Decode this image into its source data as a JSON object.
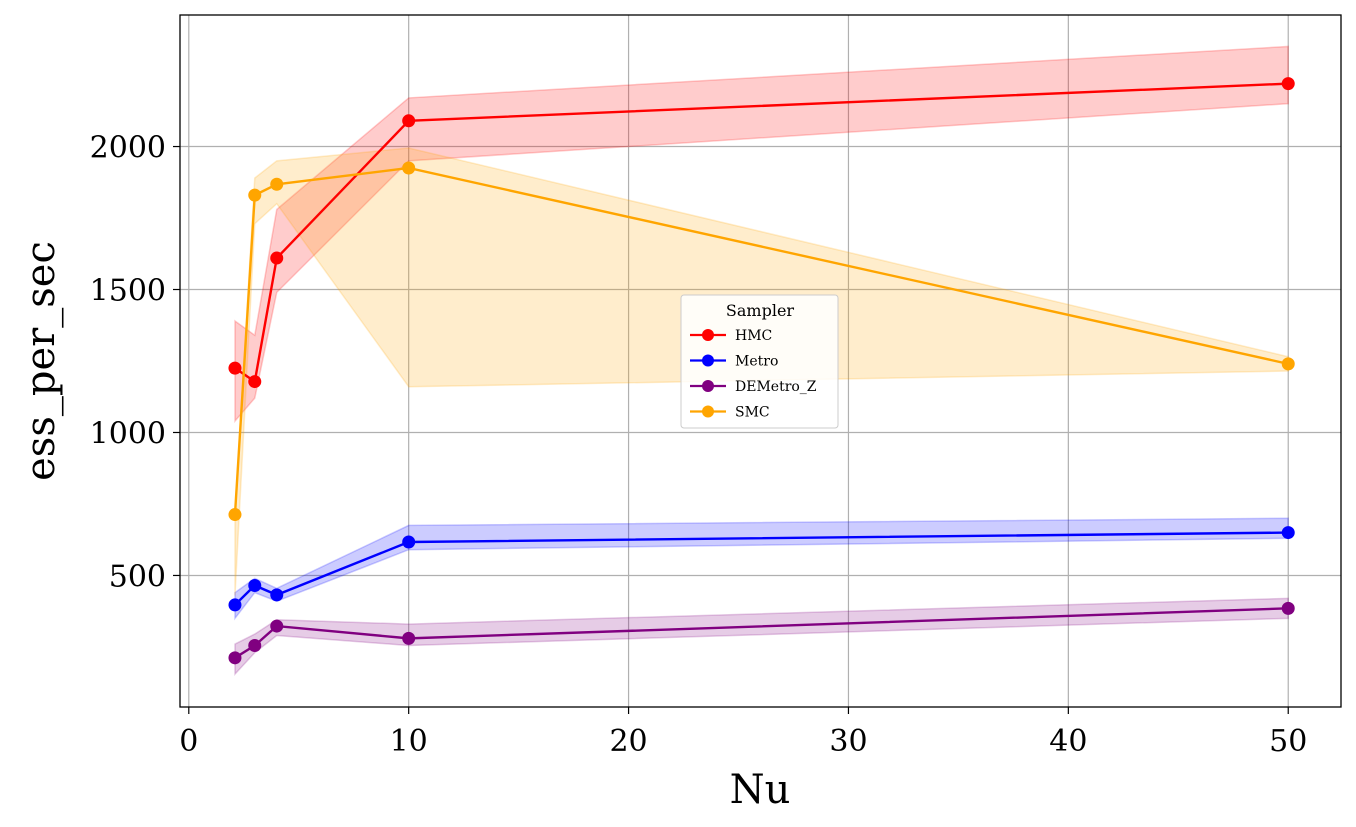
{
  "chart_data": {
    "type": "line",
    "xlabel": "Nu",
    "ylabel": "ess_per_sec",
    "xlim": [
      -0.4,
      52.4
    ],
    "ylim": [
      40,
      2460
    ],
    "xticks": [
      0,
      10,
      20,
      30,
      40,
      50
    ],
    "yticks": [
      500,
      1000,
      1500,
      2000
    ],
    "grid": true,
    "legend": {
      "title": "Sampler",
      "placement": "center"
    },
    "x": [
      2.1,
      3,
      4,
      10,
      50
    ],
    "series": [
      {
        "name": "HMC",
        "color": "#ff0000",
        "values": [
          1225,
          1178,
          1610,
          2090,
          2220
        ],
        "lower": [
          1040,
          1120,
          1490,
          1950,
          2150
        ],
        "upper": [
          1390,
          1340,
          1780,
          2170,
          2350
        ]
      },
      {
        "name": "Metro",
        "color": "#0000ff",
        "values": [
          397,
          465,
          432,
          617,
          650
        ],
        "lower": [
          350,
          440,
          410,
          590,
          630
        ],
        "upper": [
          440,
          490,
          455,
          675,
          700
        ]
      },
      {
        "name": "DEMetro_Z",
        "color": "#800080",
        "values": [
          212,
          255,
          323,
          280,
          385
        ],
        "lower": [
          155,
          230,
          290,
          255,
          350
        ],
        "upper": [
          260,
          295,
          345,
          330,
          420
        ]
      },
      {
        "name": "SMC",
        "color": "#ffa500",
        "values": [
          713,
          1830,
          1868,
          1925,
          1240
        ],
        "lower": [
          430,
          1730,
          1800,
          1160,
          1215
        ],
        "upper": [
          720,
          1890,
          1950,
          1995,
          1265
        ]
      }
    ]
  }
}
